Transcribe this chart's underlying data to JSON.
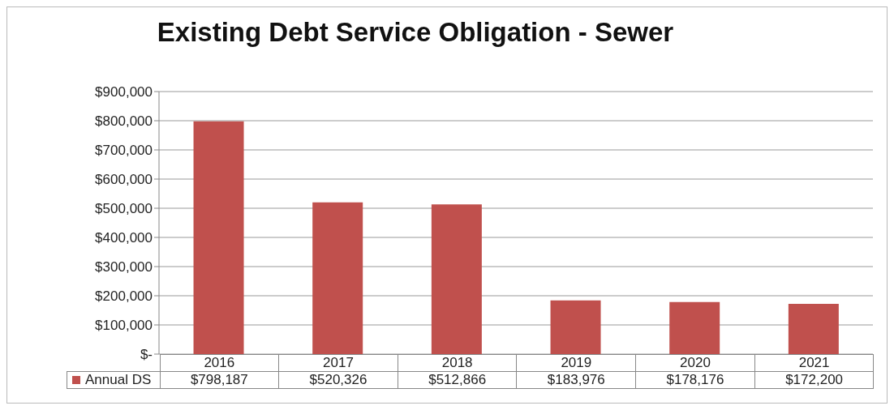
{
  "chart_data": {
    "type": "bar",
    "title": "Existing Debt Service Obligation - Sewer",
    "categories": [
      "2016",
      "2017",
      "2018",
      "2019",
      "2020",
      "2021"
    ],
    "series": [
      {
        "name": "Annual DS",
        "color": "#c0504d",
        "values": [
          798187,
          520326,
          512866,
          183976,
          178176,
          172200
        ],
        "value_labels": [
          "$798,187",
          "$520,326",
          "$512,866",
          "$183,976",
          "$178,176",
          "$172,200"
        ]
      }
    ],
    "ylim": [
      0,
      900000
    ],
    "yticks": [
      {
        "value": 0,
        "label": "$-"
      },
      {
        "value": 100000,
        "label": "$100,000"
      },
      {
        "value": 200000,
        "label": "$200,000"
      },
      {
        "value": 300000,
        "label": "$300,000"
      },
      {
        "value": 400000,
        "label": "$400,000"
      },
      {
        "value": 500000,
        "label": "$500,000"
      },
      {
        "value": 600000,
        "label": "$600,000"
      },
      {
        "value": 700000,
        "label": "$700,000"
      },
      {
        "value": 800000,
        "label": "$800,000"
      },
      {
        "value": 900000,
        "label": "$900,000"
      }
    ],
    "grid": "y",
    "legend": "bottom"
  }
}
